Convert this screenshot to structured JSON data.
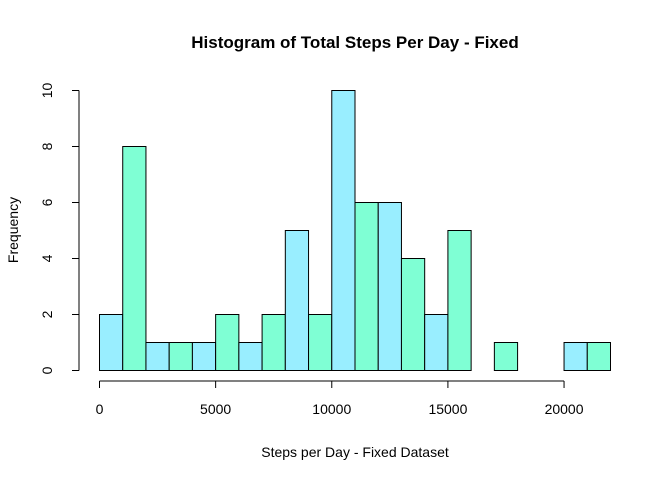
{
  "colors": {
    "bar_a": "#99EEFF",
    "bar_b": "#7FFFD4",
    "stroke": "#000000"
  },
  "chart_data": {
    "type": "bar",
    "title": "Histogram of Total Steps Per Day - Fixed",
    "xlabel": "Steps per Day - Fixed Dataset",
    "ylabel": "Frequency",
    "bin_width": 1000,
    "x": [
      0,
      1000,
      2000,
      3000,
      4000,
      5000,
      6000,
      7000,
      8000,
      9000,
      10000,
      11000,
      12000,
      13000,
      14000,
      15000,
      16000,
      17000,
      18000,
      19000,
      20000,
      21000
    ],
    "values": [
      2,
      8,
      1,
      1,
      1,
      2,
      1,
      2,
      5,
      2,
      10,
      6,
      6,
      4,
      2,
      5,
      0,
      1,
      0,
      0,
      1,
      1
    ],
    "xlim": [
      0,
      22000
    ],
    "ylim": [
      0,
      10
    ],
    "x_ticks": [
      0,
      5000,
      10000,
      15000,
      20000
    ],
    "y_ticks": [
      0,
      2,
      4,
      6,
      8,
      10
    ],
    "grid": false
  }
}
